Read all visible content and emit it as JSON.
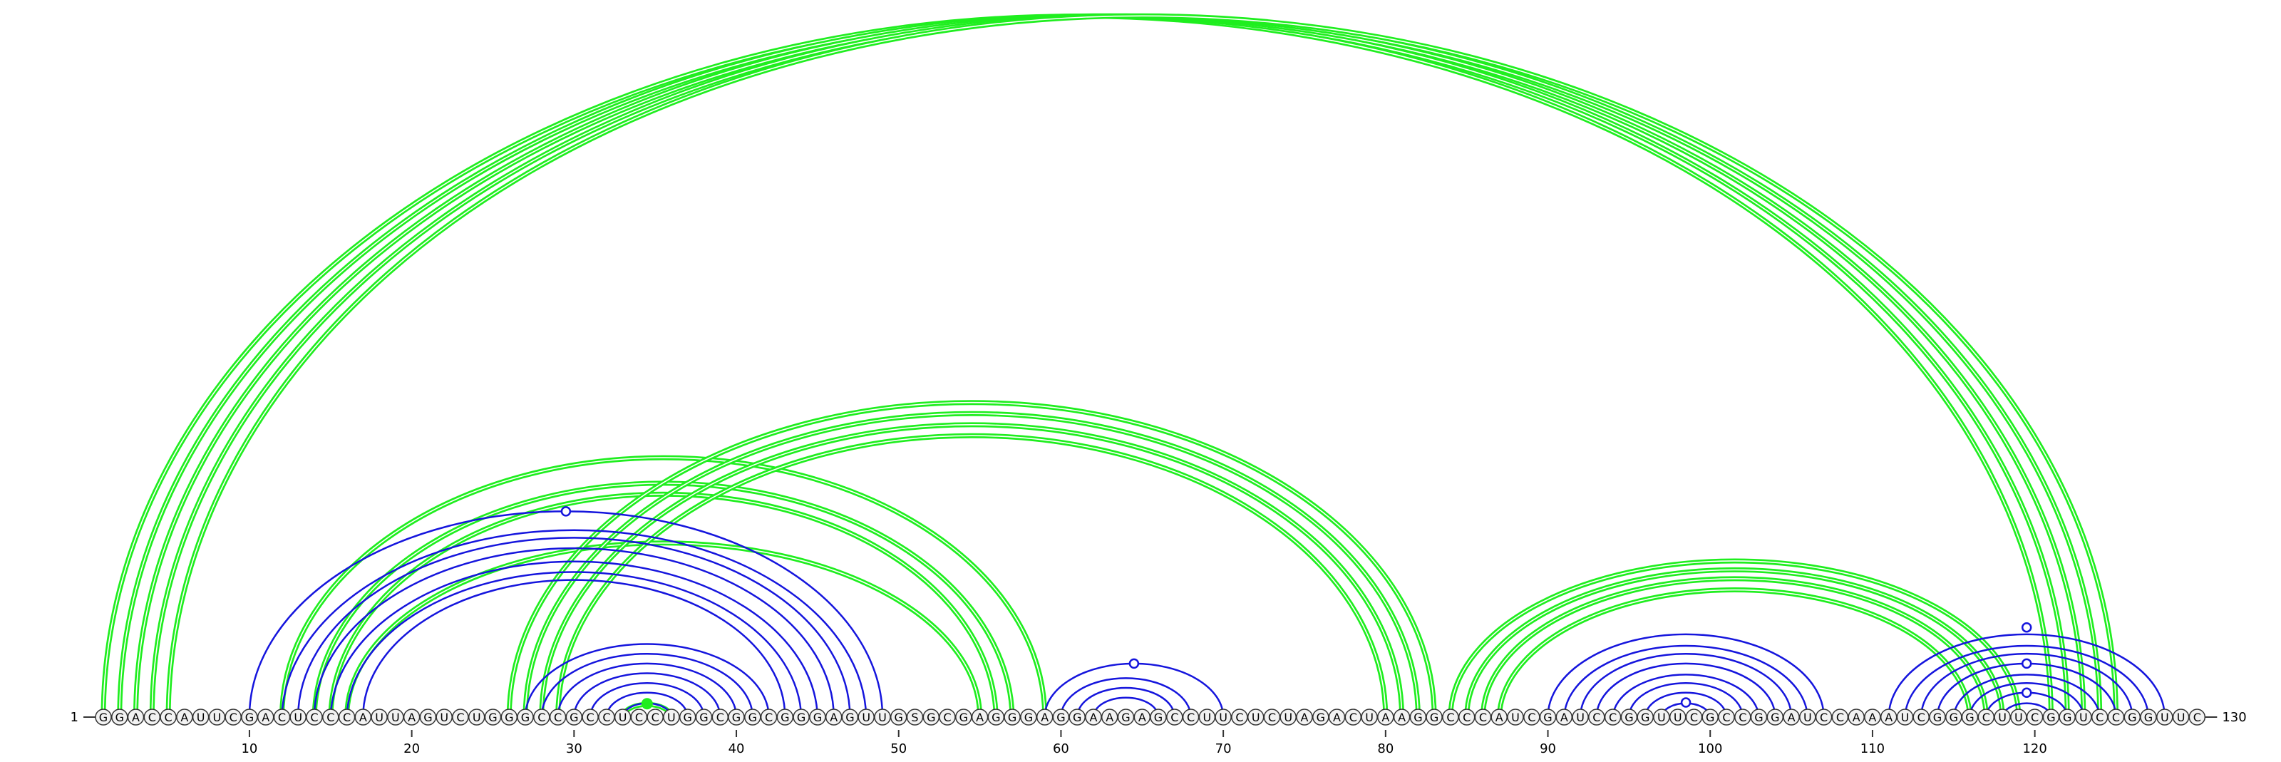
{
  "sequence": "GGACCAUUCGACUCCCAUUAGUCUGGGCCGCCUCCUGGCGGCGGGAGUUGSGCGAGGGAGGAAGAGCCUUCUCUAGACUAAGGCCCAUCGAUCCGGUUCGCCGGAUCCAAAUCGGGCUUCGGUCCGGUUC",
  "start_label": "1",
  "end_label": "130",
  "ticks": [
    10,
    20,
    30,
    40,
    50,
    60,
    70,
    80,
    90,
    100,
    110,
    120
  ],
  "colors": {
    "green_arc": "#1fee1f",
    "blue_arc": "#1515dd",
    "nucleotide_stroke": "#333333",
    "nucleotide_fill": "#f2f2f2",
    "text": "#000000"
  },
  "blue_pairs": [
    [
      10,
      49
    ],
    [
      12,
      48
    ],
    [
      13,
      47
    ],
    [
      14,
      46
    ],
    [
      15,
      45
    ],
    [
      16,
      44
    ],
    [
      17,
      43
    ],
    [
      27,
      42
    ],
    [
      28,
      41
    ],
    [
      29,
      40
    ],
    [
      30,
      39
    ],
    [
      31,
      38
    ],
    [
      32,
      37
    ],
    [
      33,
      36
    ],
    [
      59,
      70
    ],
    [
      60,
      68
    ],
    [
      61,
      67
    ],
    [
      62,
      66
    ],
    [
      90,
      107
    ],
    [
      91,
      106
    ],
    [
      92,
      105
    ],
    [
      93,
      104
    ],
    [
      94,
      103
    ],
    [
      95,
      102
    ],
    [
      96,
      101
    ],
    [
      97,
      100
    ],
    [
      111,
      128
    ],
    [
      112,
      127
    ],
    [
      113,
      126
    ],
    [
      114,
      125
    ],
    [
      115,
      124
    ],
    [
      116,
      123
    ],
    [
      117,
      122
    ],
    [
      118,
      121
    ]
  ],
  "green_pairs": [
    [
      1,
      121
    ],
    [
      2,
      122
    ],
    [
      3,
      123
    ],
    [
      4,
      124
    ],
    [
      5,
      125
    ],
    [
      12,
      59
    ],
    [
      14,
      57
    ],
    [
      15,
      56
    ],
    [
      16,
      55
    ],
    [
      26,
      83
    ],
    [
      27,
      82
    ],
    [
      28,
      81
    ],
    [
      29,
      80
    ],
    [
      84,
      119
    ],
    [
      85,
      118
    ],
    [
      86,
      117
    ],
    [
      87,
      116
    ],
    [
      33,
      36
    ]
  ],
  "open_markers": [
    [
      29.5,
      29.5
    ],
    [
      63.5,
      63.5
    ],
    [
      119.5,
      119.5
    ],
    [
      119.5,
      119.5
    ],
    [
      119.5,
      119.5
    ],
    [
      98.5,
      98.5
    ]
  ],
  "filled_markers": [
    [
      34.5,
      34.5
    ]
  ]
}
